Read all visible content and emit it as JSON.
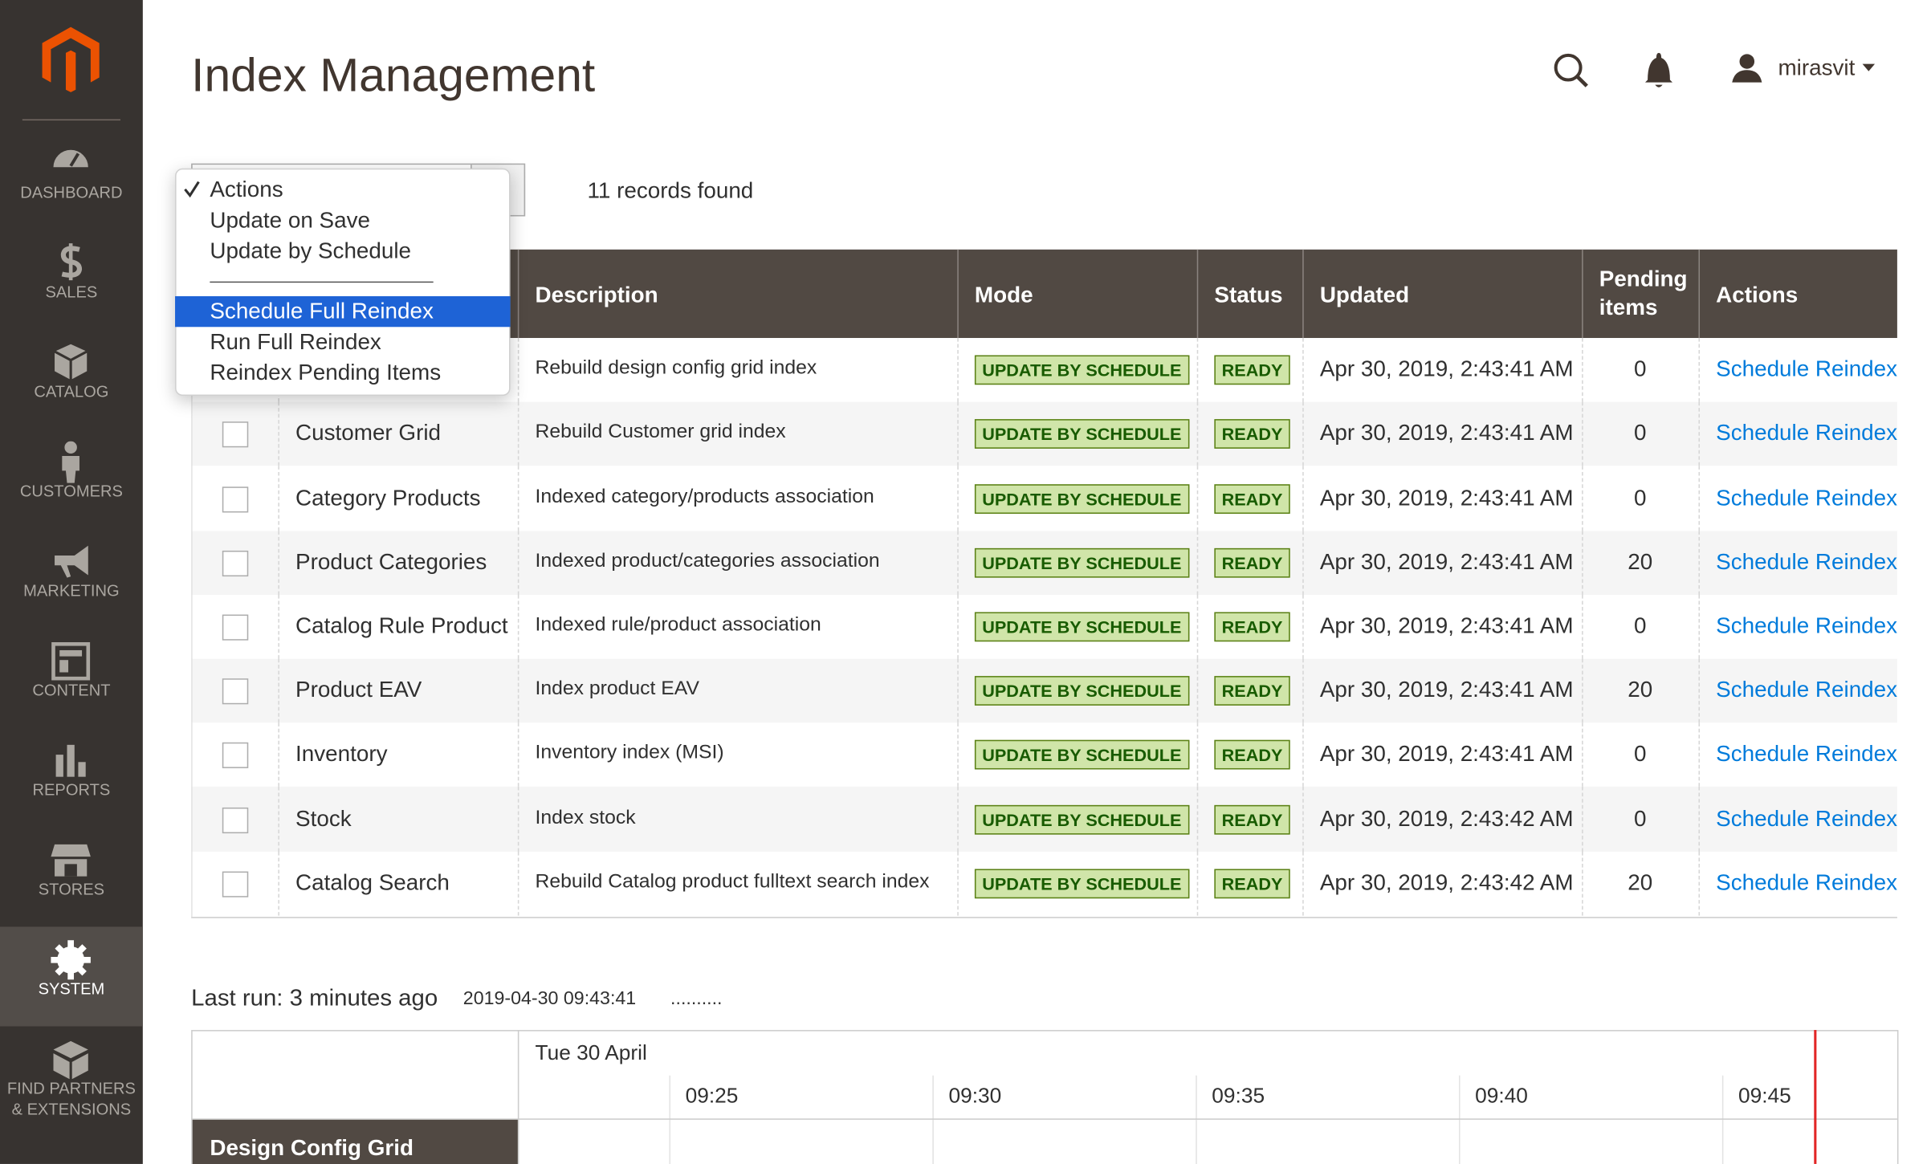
{
  "sidebar": {
    "items": [
      "DASHBOARD",
      "SALES",
      "CATALOG",
      "CUSTOMERS",
      "MARKETING",
      "CONTENT",
      "REPORTS",
      "STORES",
      "SYSTEM",
      "FIND PARTNERS & EXTENSIONS"
    ]
  },
  "header": {
    "title": "Index Management",
    "user": "mirasvit"
  },
  "actions_menu": {
    "options": [
      "Actions",
      "Update on Save",
      "Update by Schedule",
      "Schedule Full Reindex",
      "Run Full Reindex",
      "Reindex Pending Items"
    ]
  },
  "records_found": "11 records found",
  "table": {
    "columns": [
      "Description",
      "Mode",
      "Status",
      "Updated",
      "Pending items",
      "Actions"
    ],
    "rows": [
      [
        null,
        "Rebuild design config grid index",
        "UPDATE BY SCHEDULE",
        "READY",
        "Apr 30, 2019, 2:43:41 AM",
        0,
        "Schedule Reindex"
      ],
      [
        "Customer Grid",
        "Rebuild Customer grid index",
        "UPDATE BY SCHEDULE",
        "READY",
        "Apr 30, 2019, 2:43:41 AM",
        0,
        "Schedule Reindex"
      ],
      [
        "Category Products",
        "Indexed category/products association",
        "UPDATE BY SCHEDULE",
        "READY",
        "Apr 30, 2019, 2:43:41 AM",
        0,
        "Schedule Reindex"
      ],
      [
        "Product Categories",
        "Indexed product/categories association",
        "UPDATE BY SCHEDULE",
        "READY",
        "Apr 30, 2019, 2:43:41 AM",
        20,
        "Schedule Reindex"
      ],
      [
        "Catalog Rule Product",
        "Indexed rule/product association",
        "UPDATE BY SCHEDULE",
        "READY",
        "Apr 30, 2019, 2:43:41 AM",
        0,
        "Schedule Reindex"
      ],
      [
        "Product EAV",
        "Index product EAV",
        "UPDATE BY SCHEDULE",
        "READY",
        "Apr 30, 2019, 2:43:41 AM",
        20,
        "Schedule Reindex"
      ],
      [
        "Inventory",
        "Inventory index (MSI)",
        "UPDATE BY SCHEDULE",
        "READY",
        "Apr 30, 2019, 2:43:41 AM",
        0,
        "Schedule Reindex"
      ],
      [
        "Stock",
        "Index stock",
        "UPDATE BY SCHEDULE",
        "READY",
        "Apr 30, 2019, 2:43:42 AM",
        0,
        "Schedule Reindex"
      ],
      [
        "Catalog Search",
        "Rebuild Catalog product fulltext search index",
        "UPDATE BY SCHEDULE",
        "READY",
        "Apr 30, 2019, 2:43:42 AM",
        20,
        "Schedule Reindex"
      ]
    ]
  },
  "timeline": {
    "last_run": "Last run: 3 minutes ago",
    "timestamp": "2019-04-30 09:43:41",
    "progress": "..........",
    "date": "Tue 30 April",
    "times": [
      "09:25",
      "09:30",
      "09:35",
      "09:40",
      "09:45"
    ],
    "first_row": "Design Config Grid"
  }
}
